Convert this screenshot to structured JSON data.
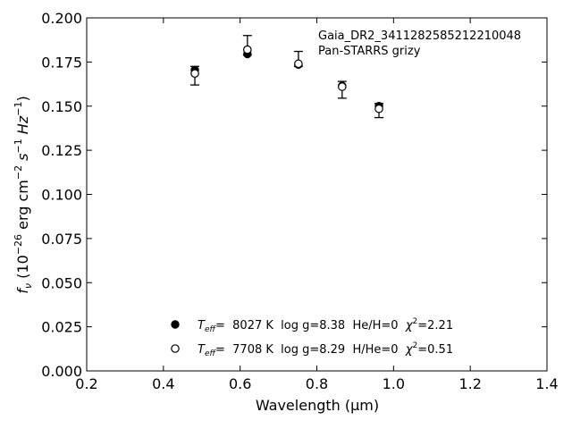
{
  "chart_data": {
    "type": "scatter",
    "title": "",
    "xlabel": "Wavelength",
    "xlabel_unit": "(μm)",
    "ylabel_symbol": "f",
    "ylabel_subscript": "ν",
    "ylabel_rest": "(10",
    "ylabel_exp": "−26",
    "ylabel_units": " erg cm",
    "ylabel_units_exp1": "−2",
    "ylabel_units_s": " s",
    "ylabel_units_exp2": "−1",
    "ylabel_units_hz": " Hz",
    "ylabel_units_exp3": "−1",
    "ylabel_close": ")",
    "xlim": [
      0.2,
      1.4
    ],
    "ylim": [
      0.0,
      0.2
    ],
    "xticks": [
      "0.2",
      "0.4",
      "0.6",
      "0.8",
      "1.0",
      "1.2",
      "1.4"
    ],
    "yticks": [
      "0.000",
      "0.025",
      "0.050",
      "0.075",
      "0.100",
      "0.125",
      "0.150",
      "0.175",
      "0.200"
    ],
    "grid": false,
    "annotation": {
      "line1": "Gaia_DR2_3411282585212210048",
      "line2": "Pan-STARRS grizy"
    },
    "observed": {
      "marker": "open-circle",
      "points": [
        {
          "x": 0.482,
          "y": 0.1685,
          "err_low": 0.0065,
          "err_high": 0.004
        },
        {
          "x": 0.619,
          "y": 0.182,
          "err_low": 0.003,
          "err_high": 0.008
        },
        {
          "x": 0.752,
          "y": 0.174,
          "err_low": 0.0015,
          "err_high": 0.007
        },
        {
          "x": 0.866,
          "y": 0.161,
          "err_low": 0.0065,
          "err_high": 0.003
        },
        {
          "x": 0.962,
          "y": 0.1485,
          "err_low": 0.005,
          "err_high": 0.003
        }
      ]
    },
    "model": {
      "marker": "filled-circle",
      "points": [
        {
          "x": 0.482,
          "y": 0.1705
        },
        {
          "x": 0.619,
          "y": 0.1795
        },
        {
          "x": 0.752,
          "y": 0.1735
        },
        {
          "x": 0.866,
          "y": 0.1615
        },
        {
          "x": 0.962,
          "y": 0.15
        }
      ]
    },
    "legend": {
      "placement": "bottom-center",
      "entries": [
        {
          "marker": "filled-circle",
          "teff_label": "T",
          "teff_sub": "eff",
          "text_main": "=  8027 K  log g=8.38  He/H=0  ",
          "chi_label": "χ",
          "chi_exp": "2",
          "chi_value": "=2.21"
        },
        {
          "marker": "open-circle",
          "teff_label": "T",
          "teff_sub": "eff",
          "text_main": "=  7708 K  log g=8.29  H/He=0  ",
          "chi_label": "χ",
          "chi_exp": "2",
          "chi_value": "=0.51"
        }
      ]
    }
  }
}
